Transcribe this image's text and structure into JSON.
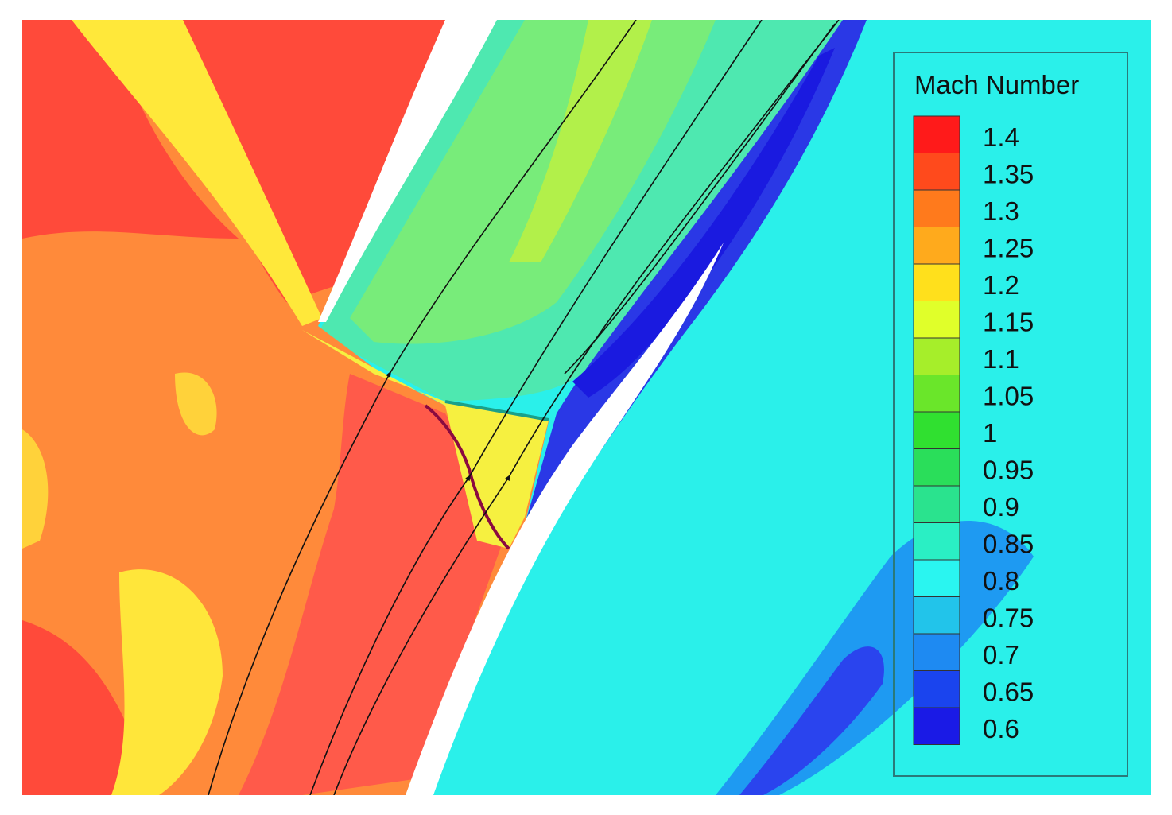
{
  "legend": {
    "title": "Mach Number",
    "levels": [
      {
        "label": "1.4",
        "value": 1.4,
        "color": "#ff1a1a"
      },
      {
        "label": "1.35",
        "value": 1.35,
        "color": "#ff4a1c"
      },
      {
        "label": "1.3",
        "value": 1.3,
        "color": "#ff7a1c"
      },
      {
        "label": "1.25",
        "value": 1.25,
        "color": "#ffaa1c"
      },
      {
        "label": "1.2",
        "value": 1.2,
        "color": "#ffe01c"
      },
      {
        "label": "1.15",
        "value": 1.15,
        "color": "#e0ff2a"
      },
      {
        "label": "1.1",
        "value": 1.1,
        "color": "#a6ee2a"
      },
      {
        "label": "1.05",
        "value": 1.05,
        "color": "#6ae62a"
      },
      {
        "label": "1",
        "value": 1.0,
        "color": "#30e030"
      },
      {
        "label": "0.95",
        "value": 0.95,
        "color": "#2ade5a"
      },
      {
        "label": "0.9",
        "value": 0.9,
        "color": "#2ae38e"
      },
      {
        "label": "0.85",
        "value": 0.85,
        "color": "#2aefc4"
      },
      {
        "label": "0.8",
        "value": 0.8,
        "color": "#2af5f0"
      },
      {
        "label": "0.75",
        "value": 0.75,
        "color": "#22c4ea"
      },
      {
        "label": "0.7",
        "value": 0.7,
        "color": "#1e8af2"
      },
      {
        "label": "0.65",
        "value": 0.65,
        "color": "#1a44ee"
      },
      {
        "label": "0.6",
        "value": 0.6,
        "color": "#1a1ae6"
      }
    ]
  }
}
